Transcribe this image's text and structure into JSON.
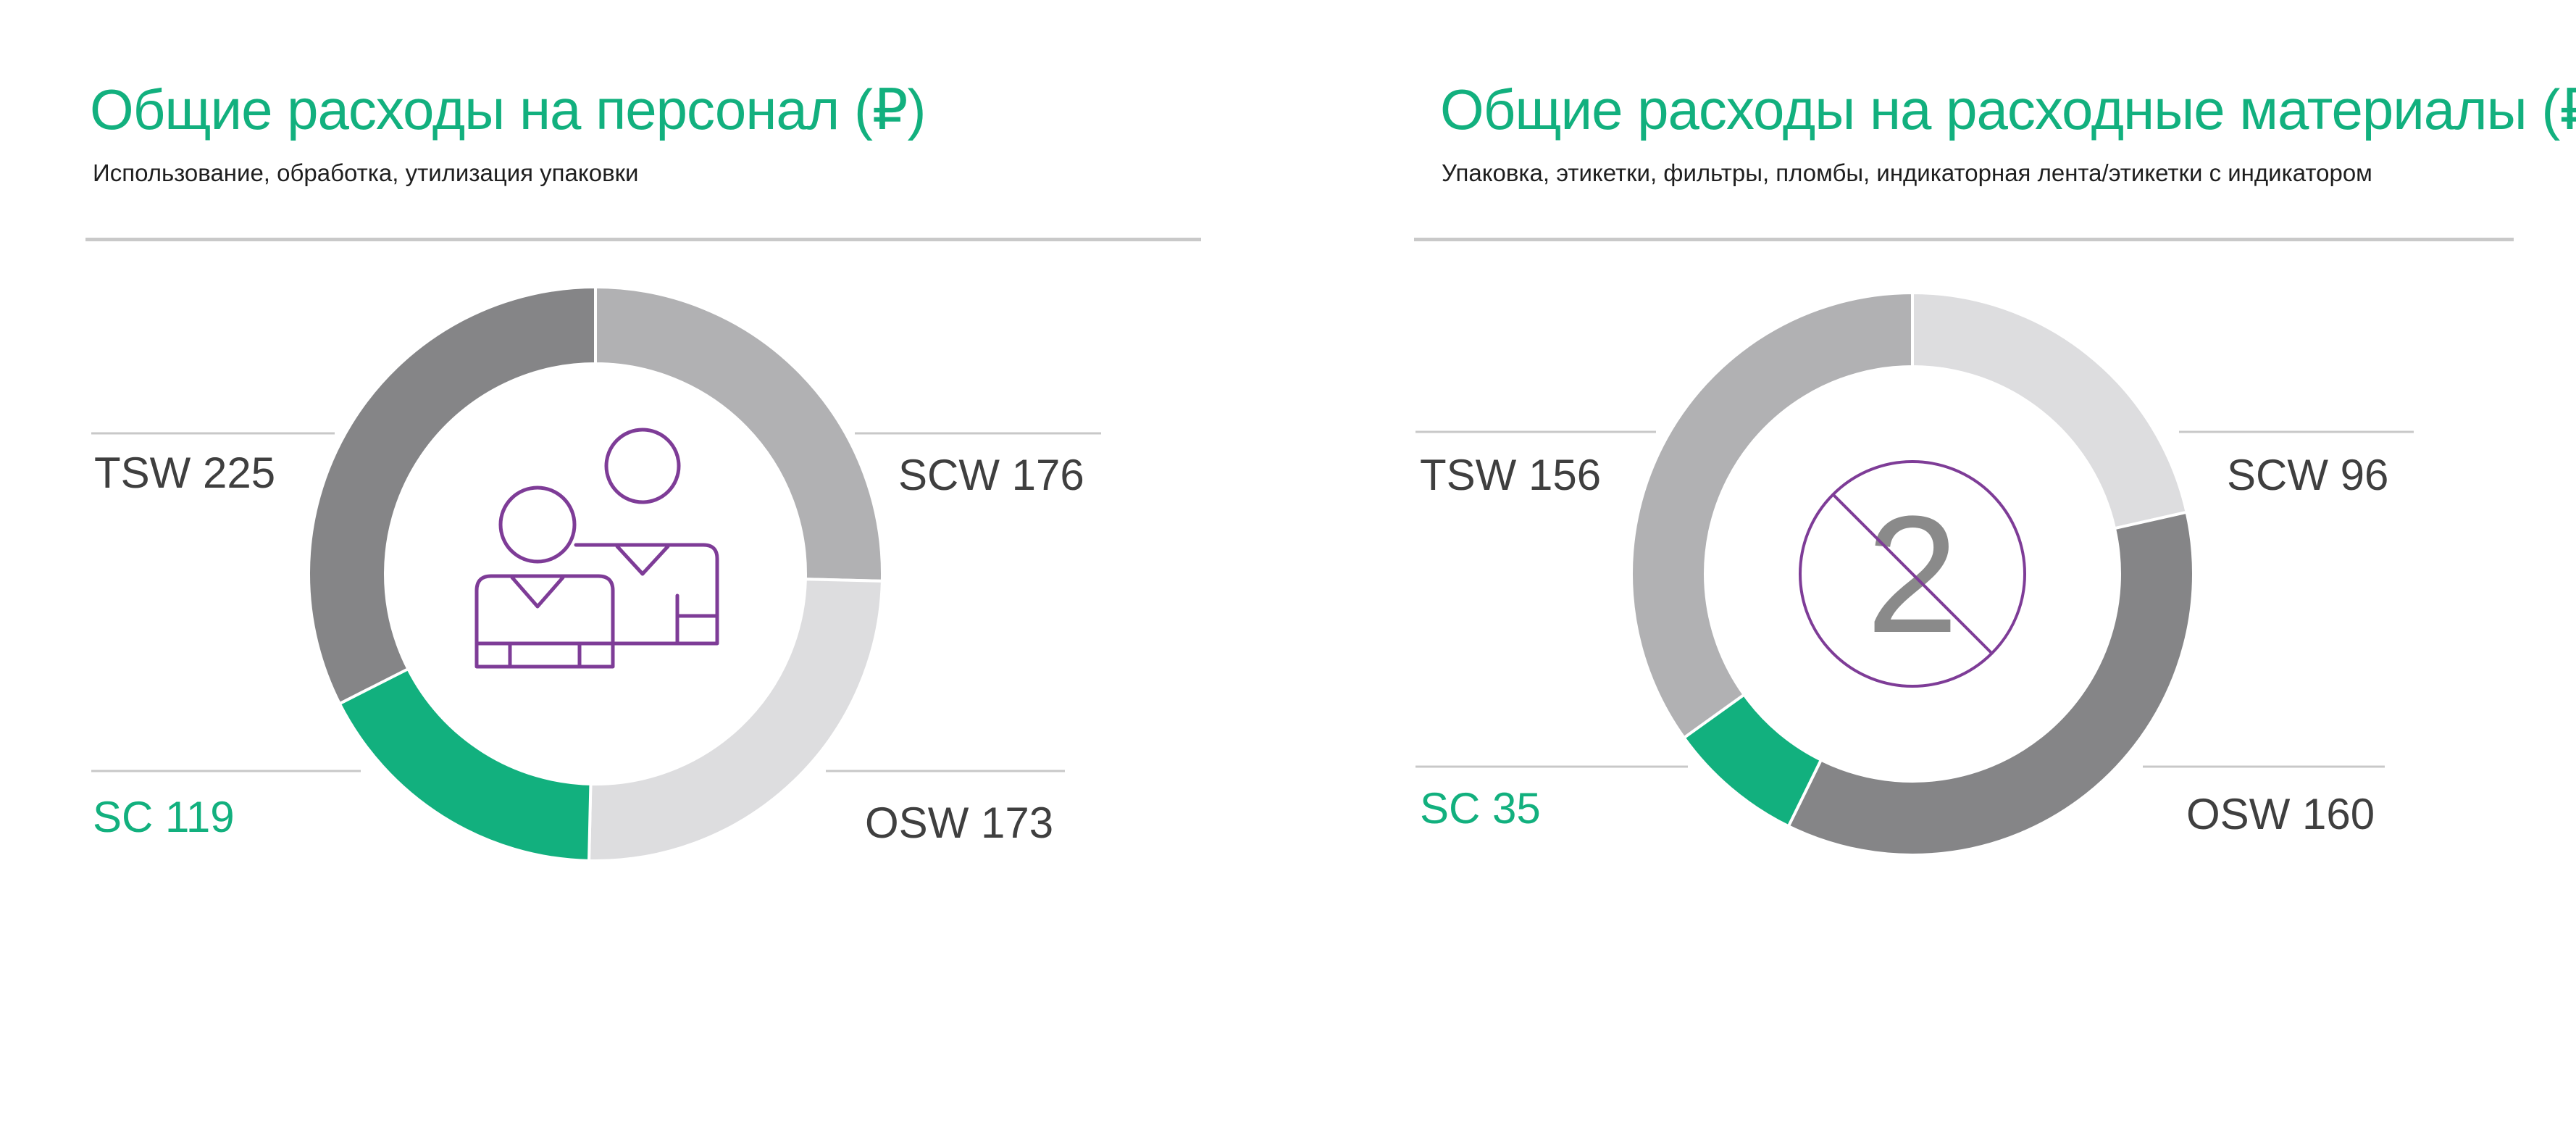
{
  "chart_data": [
    {
      "type": "pie",
      "title": "Общие расходы на персонал (₽)",
      "subtitle": "Использование, обработка, утилизация упаковки",
      "categories": [
        "SCW",
        "OSW",
        "SC",
        "TSW"
      ],
      "values": [
        176,
        173,
        119,
        225
      ],
      "labels": [
        "SCW 176",
        "OSW 173",
        "SC 119",
        "TSW 225"
      ],
      "colors": [
        "#b1b1b3",
        "#dddddf",
        "#12b07e",
        "#858587"
      ],
      "icon": "people-icon"
    },
    {
      "type": "pie",
      "title": "Общие расходы на расходные материалы (₽)",
      "subtitle": "Упаковка, этикетки, фильтры, пломбы, индикаторная лента/этикетки с индикатором",
      "categories": [
        "SCW",
        "OSW",
        "SC",
        "TSW"
      ],
      "values": [
        96,
        160,
        35,
        156
      ],
      "labels": [
        "SCW 96",
        "OSW 160",
        "SC 35",
        "TSW 156"
      ],
      "colors": [
        "#dddddf",
        "#858587",
        "#12b07e",
        "#b1b1b3"
      ],
      "icon": "no-reuse-icon",
      "icon_text": "2"
    }
  ]
}
